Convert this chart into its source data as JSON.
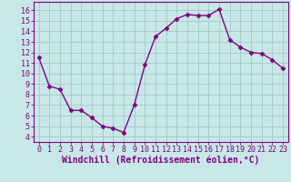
{
  "x": [
    0,
    1,
    2,
    3,
    4,
    5,
    6,
    7,
    8,
    9,
    10,
    11,
    12,
    13,
    14,
    15,
    16,
    17,
    18,
    19,
    20,
    21,
    22,
    23
  ],
  "y": [
    11.5,
    8.8,
    8.5,
    6.5,
    6.5,
    5.8,
    5.0,
    4.8,
    4.4,
    7.0,
    10.8,
    13.5,
    14.3,
    15.2,
    15.6,
    15.5,
    15.5,
    16.1,
    13.2,
    12.5,
    12.0,
    11.9,
    11.3,
    10.5
  ],
  "line_color": "#800080",
  "marker": "D",
  "marker_size": 2.5,
  "bg_color": "#c8e8e8",
  "grid_color": "#a0c8c8",
  "xlabel": "Windchill (Refroidissement éolien,°C)",
  "xlabel_color": "#800080",
  "ylim": [
    3.5,
    16.8
  ],
  "xlim": [
    -0.5,
    23.5
  ],
  "yticks": [
    4,
    5,
    6,
    7,
    8,
    9,
    10,
    11,
    12,
    13,
    14,
    15,
    16
  ],
  "xticks": [
    0,
    1,
    2,
    3,
    4,
    5,
    6,
    7,
    8,
    9,
    10,
    11,
    12,
    13,
    14,
    15,
    16,
    17,
    18,
    19,
    20,
    21,
    22,
    23
  ],
  "tick_color": "#800080",
  "tick_fontsize": 6.0,
  "xlabel_fontsize": 7.0,
  "spine_color": "#800080",
  "line_width": 1.0
}
